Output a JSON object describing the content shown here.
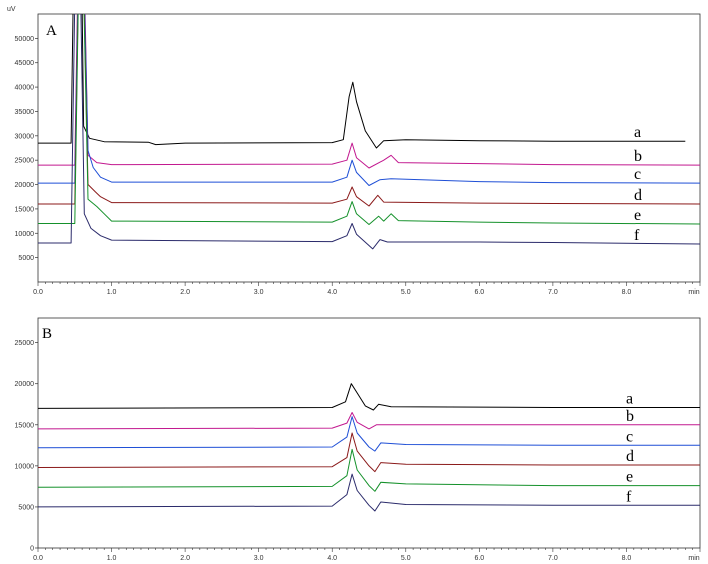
{
  "chart_data": [
    {
      "type": "line",
      "panel_label": "A",
      "y_unit": "uV",
      "x_unit": "min",
      "xlim": [
        0,
        90
      ],
      "ylim": [
        0,
        55000
      ],
      "x_tick_labels": [
        "0.0",
        "1.0",
        "2.0",
        "3.0",
        "4.0",
        "5.0",
        "6.0",
        "7.0",
        "8.0"
      ],
      "x_tick_values": [
        0,
        10,
        20,
        30,
        40,
        50,
        60,
        70,
        80
      ],
      "y_tick_values": [
        5000,
        10000,
        15000,
        20000,
        25000,
        30000,
        35000,
        40000,
        45000,
        50000
      ],
      "y_tick_labels": [
        "5000",
        "10000",
        "15000",
        "20000",
        "25000",
        "30000",
        "35000",
        "40000",
        "45000",
        "50000"
      ],
      "series": [
        {
          "name": "a",
          "color": "#000000",
          "baseline": 28500,
          "x_end": 88,
          "points": [
            [
              0,
              28500
            ],
            [
              4.5,
              28500
            ],
            [
              5,
              80000
            ],
            [
              5.8,
              80000
            ],
            [
              6.2,
              32000
            ],
            [
              7,
              29500
            ],
            [
              9,
              28800
            ],
            [
              15,
              28700
            ],
            [
              16,
              28200
            ],
            [
              20,
              28500
            ],
            [
              40,
              28600
            ],
            [
              41.5,
              29200
            ],
            [
              42.3,
              38000
            ],
            [
              42.8,
              41000
            ],
            [
              43.3,
              37000
            ],
            [
              44.5,
              31000
            ],
            [
              46,
              27500
            ],
            [
              47,
              29000
            ],
            [
              50,
              29200
            ],
            [
              60,
              29000
            ],
            [
              70,
              28900
            ],
            [
              88,
              28900
            ]
          ]
        },
        {
          "name": "b",
          "color": "#c2188f",
          "baseline": 24000,
          "x_end": 90,
          "points": [
            [
              0,
              24000
            ],
            [
              5,
              24000
            ],
            [
              5.5,
              70000
            ],
            [
              6.2,
              70000
            ],
            [
              6.8,
              26000
            ],
            [
              8,
              24500
            ],
            [
              10,
              24100
            ],
            [
              40,
              24200
            ],
            [
              42,
              25000
            ],
            [
              42.7,
              28500
            ],
            [
              43.3,
              25500
            ],
            [
              45,
              23400
            ],
            [
              47,
              25000
            ],
            [
              48,
              26000
            ],
            [
              49,
              24500
            ],
            [
              60,
              24300
            ],
            [
              70,
              24100
            ],
            [
              90,
              24000
            ]
          ]
        },
        {
          "name": "c",
          "color": "#1f4fd6",
          "baseline": 20300,
          "x_end": 90,
          "points": [
            [
              0,
              20300
            ],
            [
              5,
              20300
            ],
            [
              5.5,
              65000
            ],
            [
              6.2,
              65000
            ],
            [
              6.8,
              27000
            ],
            [
              7.5,
              23500
            ],
            [
              8.5,
              21500
            ],
            [
              10,
              20500
            ],
            [
              40,
              20500
            ],
            [
              42,
              21500
            ],
            [
              42.7,
              25000
            ],
            [
              43.3,
              22500
            ],
            [
              45,
              19800
            ],
            [
              46.5,
              21000
            ],
            [
              48,
              21200
            ],
            [
              60,
              20600
            ],
            [
              70,
              20400
            ],
            [
              90,
              20300
            ]
          ]
        },
        {
          "name": "d",
          "color": "#8b1a1a",
          "baseline": 16000,
          "x_end": 90,
          "points": [
            [
              0,
              16000
            ],
            [
              5,
              16000
            ],
            [
              5.5,
              62000
            ],
            [
              6.2,
              62000
            ],
            [
              6.8,
              20000
            ],
            [
              7.8,
              18500
            ],
            [
              8.5,
              17500
            ],
            [
              10,
              16300
            ],
            [
              40,
              16200
            ],
            [
              42,
              17000
            ],
            [
              42.7,
              19500
            ],
            [
              43.3,
              17500
            ],
            [
              45,
              15600
            ],
            [
              46.2,
              17800
            ],
            [
              47,
              16400
            ],
            [
              60,
              16200
            ],
            [
              70,
              16100
            ],
            [
              90,
              16000
            ]
          ]
        },
        {
          "name": "e",
          "color": "#15912b",
          "baseline": 12000,
          "x_end": 90,
          "points": [
            [
              0,
              12000
            ],
            [
              5,
              12000
            ],
            [
              5.5,
              60000
            ],
            [
              6.2,
              60000
            ],
            [
              6.8,
              17000
            ],
            [
              8,
              15500
            ],
            [
              9,
              14000
            ],
            [
              10,
              12500
            ],
            [
              40,
              12300
            ],
            [
              42,
              13500
            ],
            [
              42.7,
              16500
            ],
            [
              43.3,
              14000
            ],
            [
              45,
              11800
            ],
            [
              46.3,
              13500
            ],
            [
              47,
              12500
            ],
            [
              48,
              14000
            ],
            [
              49,
              12600
            ],
            [
              60,
              12300
            ],
            [
              70,
              12100
            ],
            [
              90,
              11900
            ]
          ]
        },
        {
          "name": "f",
          "color": "#2b2b6b",
          "baseline": 8000,
          "x_end": 90,
          "points": [
            [
              0,
              8000
            ],
            [
              4.5,
              8000
            ],
            [
              5,
              58000
            ],
            [
              5.8,
              58000
            ],
            [
              6.3,
              14000
            ],
            [
              7.2,
              11000
            ],
            [
              8.5,
              9500
            ],
            [
              10,
              8600
            ],
            [
              40,
              8300
            ],
            [
              42,
              9500
            ],
            [
              42.7,
              12000
            ],
            [
              43.3,
              9800
            ],
            [
              45.5,
              6800
            ],
            [
              46.5,
              8700
            ],
            [
              47.5,
              8200
            ],
            [
              60,
              8200
            ],
            [
              70,
              8100
            ],
            [
              90,
              7800
            ]
          ]
        }
      ]
    },
    {
      "type": "line",
      "panel_label": "B",
      "x_unit": "min",
      "xlim": [
        0,
        90
      ],
      "ylim": [
        0,
        28000
      ],
      "x_tick_labels": [
        "0.0",
        "1.0",
        "2.0",
        "3.0",
        "4.0",
        "5.0",
        "6.0",
        "7.0",
        "8.0"
      ],
      "x_tick_values": [
        0,
        10,
        20,
        30,
        40,
        50,
        60,
        70,
        80
      ],
      "y_tick_values": [
        0,
        5000,
        10000,
        15000,
        20000,
        25000
      ],
      "y_tick_labels": [
        "0",
        "5000",
        "10000",
        "15000",
        "20000",
        "25000"
      ],
      "series": [
        {
          "name": "a",
          "color": "#000000",
          "baseline": 17000,
          "x_end": 90,
          "points": [
            [
              0,
              17000
            ],
            [
              40,
              17100
            ],
            [
              41.8,
              17800
            ],
            [
              42.6,
              20000
            ],
            [
              43.3,
              19000
            ],
            [
              44.5,
              17300
            ],
            [
              45.6,
              16800
            ],
            [
              46.3,
              17500
            ],
            [
              48,
              17200
            ],
            [
              70,
              17100
            ],
            [
              90,
              17100
            ]
          ]
        },
        {
          "name": "b",
          "color": "#c2188f",
          "baseline": 14500,
          "x_end": 90,
          "points": [
            [
              0,
              14500
            ],
            [
              40,
              14600
            ],
            [
              42,
              15200
            ],
            [
              42.7,
              16500
            ],
            [
              43.4,
              15300
            ],
            [
              45,
              14500
            ],
            [
              46,
              15000
            ],
            [
              50,
              15000
            ],
            [
              70,
              15000
            ],
            [
              90,
              15000
            ]
          ]
        },
        {
          "name": "c",
          "color": "#1f4fd6",
          "baseline": 12200,
          "x_end": 90,
          "points": [
            [
              0,
              12200
            ],
            [
              40,
              12300
            ],
            [
              42,
              13500
            ],
            [
              42.7,
              16000
            ],
            [
              43.4,
              14000
            ],
            [
              45,
              12300
            ],
            [
              45.8,
              11800
            ],
            [
              46.6,
              12800
            ],
            [
              50,
              12600
            ],
            [
              70,
              12500
            ],
            [
              90,
              12500
            ]
          ]
        },
        {
          "name": "d",
          "color": "#8b1a1a",
          "baseline": 9800,
          "x_end": 90,
          "points": [
            [
              0,
              9800
            ],
            [
              40,
              9900
            ],
            [
              42,
              11000
            ],
            [
              42.7,
              14000
            ],
            [
              43.4,
              11800
            ],
            [
              45,
              10000
            ],
            [
              45.8,
              9300
            ],
            [
              46.6,
              10400
            ],
            [
              50,
              10200
            ],
            [
              70,
              10100
            ],
            [
              90,
              10100
            ]
          ]
        },
        {
          "name": "e",
          "color": "#15912b",
          "baseline": 7400,
          "x_end": 90,
          "points": [
            [
              0,
              7400
            ],
            [
              40,
              7500
            ],
            [
              42,
              8800
            ],
            [
              42.7,
              12000
            ],
            [
              43.4,
              9500
            ],
            [
              45,
              7600
            ],
            [
              45.8,
              6900
            ],
            [
              46.6,
              8000
            ],
            [
              50,
              7800
            ],
            [
              70,
              7600
            ],
            [
              90,
              7600
            ]
          ]
        },
        {
          "name": "f",
          "color": "#2b2b6b",
          "baseline": 5000,
          "x_end": 90,
          "points": [
            [
              0,
              5000
            ],
            [
              40,
              5100
            ],
            [
              42,
              6500
            ],
            [
              42.7,
              9000
            ],
            [
              43.4,
              7000
            ],
            [
              45,
              5200
            ],
            [
              45.8,
              4500
            ],
            [
              46.6,
              5600
            ],
            [
              50,
              5300
            ],
            [
              70,
              5200
            ],
            [
              90,
              5200
            ]
          ]
        }
      ]
    }
  ]
}
